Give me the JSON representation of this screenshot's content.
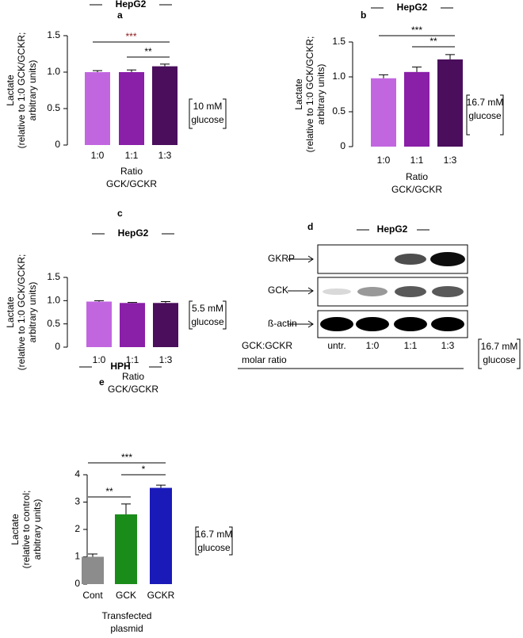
{
  "chart_data": [
    {
      "type": "bar",
      "label": "a",
      "title": "HepG2",
      "ylabel": [
        "Lactate",
        "(relative to 1:0 GCK/GCKR;",
        "arbitrary units)"
      ],
      "xlabel": [
        "Ratio",
        "GCK/GCKR"
      ],
      "categories": [
        "1:0",
        "1:1",
        "1:3"
      ],
      "values": [
        1.0,
        1.0,
        1.08
      ],
      "errors": [
        0.02,
        0.03,
        0.03
      ],
      "colors": [
        "#c266e0",
        "#8a1fa8",
        "#4a0e5c"
      ],
      "ylim": [
        0,
        1.5
      ],
      "yticks": [
        0,
        0.5,
        {
          "value": 1,
          "label": "1.0"
        },
        1.5
      ],
      "annotation": [
        "10 mM",
        "glucose"
      ],
      "significance": [
        {
          "pair": [
            "1:0",
            "1:3"
          ],
          "label": "***",
          "color": "#8b1a1a"
        },
        {
          "pair": [
            "1:1",
            "1:3"
          ],
          "label": "**",
          "color": "#000000"
        }
      ]
    },
    {
      "type": "bar",
      "label": "b",
      "title": "HepG2",
      "ylabel": [
        "Lactate",
        "(relative to 1:0 GCK/GCKR;",
        "arbitrary units)"
      ],
      "xlabel": [
        "Ratio",
        "GCK/GCKR"
      ],
      "categories": [
        "1:0",
        "1:1",
        "1:3"
      ],
      "values": [
        0.98,
        1.07,
        1.25
      ],
      "errors": [
        0.05,
        0.07,
        0.07
      ],
      "colors": [
        "#c266e0",
        "#8a1fa8",
        "#4a0e5c"
      ],
      "ylim": [
        0,
        1.5
      ],
      "yticks": [
        0,
        0.5,
        {
          "value": 1,
          "label": "1.0"
        },
        1.5
      ],
      "annotation": [
        "16.7 mM",
        "glucose"
      ],
      "significance": [
        {
          "pair": [
            "1:0",
            "1:3"
          ],
          "label": "***",
          "color": "#000000"
        },
        {
          "pair": [
            "1:1",
            "1:3"
          ],
          "label": "**",
          "color": "#000000"
        }
      ]
    },
    {
      "type": "bar",
      "label": "c",
      "title": "HepG2",
      "ylabel": [
        "Lactate",
        "(relative to 1:0 GCK/GCKR;",
        "arbitrary units)"
      ],
      "xlabel": [
        "Ratio",
        "GCK/GCKR"
      ],
      "categories": [
        "1:0",
        "1:1",
        "1:3"
      ],
      "values": [
        0.98,
        0.95,
        0.95
      ],
      "errors": [
        0.02,
        0.01,
        0.03
      ],
      "colors": [
        "#c266e0",
        "#8a1fa8",
        "#4a0e5c"
      ],
      "ylim": [
        0,
        1.5
      ],
      "yticks": [
        0,
        0.5,
        {
          "value": 1,
          "label": "1.0"
        },
        1.5
      ],
      "annotation": [
        "5.5 mM",
        "glucose"
      ],
      "significance": []
    },
    {
      "type": "bar",
      "label": "e",
      "title": "HPH",
      "ylabel": [
        "Lactate",
        "(relative to control;",
        "arbitrary units)"
      ],
      "xlabel": [
        "Transfected",
        "plasmid"
      ],
      "categories": [
        "Cont",
        "GCK",
        "GCKR"
      ],
      "values": [
        1.0,
        2.55,
        3.52
      ],
      "errors": [
        0.1,
        0.38,
        0.1
      ],
      "colors": [
        "#8c8c8c",
        "#1a8c1a",
        "#1a1ab8"
      ],
      "ylim": [
        0,
        4
      ],
      "yticks": [
        0,
        1,
        2,
        3,
        4
      ],
      "annotation": [
        "16.7 mM",
        "glucose"
      ],
      "significance": [
        {
          "pair": [
            "Cont",
            "GCKR"
          ],
          "label": "***",
          "color": "#000000"
        },
        {
          "pair": [
            "GCK",
            "GCKR"
          ],
          "label": "*",
          "color": "#000000"
        },
        {
          "pair": [
            "Cont",
            "GCK"
          ],
          "label": "**",
          "color": "#000000"
        }
      ]
    }
  ],
  "blot": {
    "label": "d",
    "title": "HepG2",
    "rows": [
      "GKRP",
      "GCK",
      "ß-actin"
    ],
    "lanes": [
      "untr.",
      "1:0",
      "1:1",
      "1:3"
    ],
    "lane_axis": [
      "GCK:GCKR",
      "molar ratio"
    ],
    "annotation": [
      "16.7 mM",
      "glucose"
    ]
  }
}
